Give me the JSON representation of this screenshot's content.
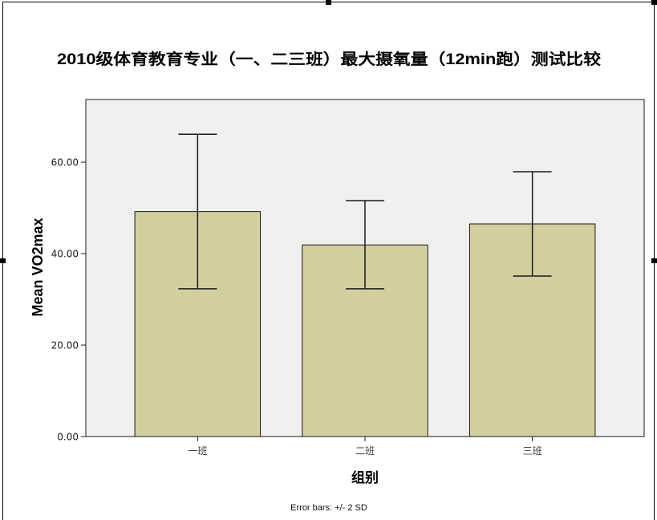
{
  "chart_data": {
    "type": "bar",
    "title": "2010级体育教育专业（一、二三班）最大摄氧量（12min跑）测试比较",
    "xlabel": "组别",
    "ylabel": "Mean VO2max",
    "categories": [
      "一班",
      "二班",
      "三班"
    ],
    "values": [
      49.2,
      41.9,
      46.5
    ],
    "error_bars": {
      "note": "Error bars: +/- 2 SD",
      "low": [
        32.3,
        32.3,
        35.1
      ],
      "high": [
        66.1,
        51.6,
        57.9
      ]
    },
    "ylim": [
      0,
      73.7
    ],
    "yticks": [
      0,
      20,
      40,
      60
    ],
    "ytick_labels": [
      "0.00",
      "20.00",
      "40.00",
      "60.00"
    ],
    "grid": false,
    "colors": {
      "bar": "#d3ce9e",
      "bar_edge": "#1a1a1a",
      "plot_background": "#f0f0f0",
      "error_bar": "#1a1a1a"
    }
  }
}
